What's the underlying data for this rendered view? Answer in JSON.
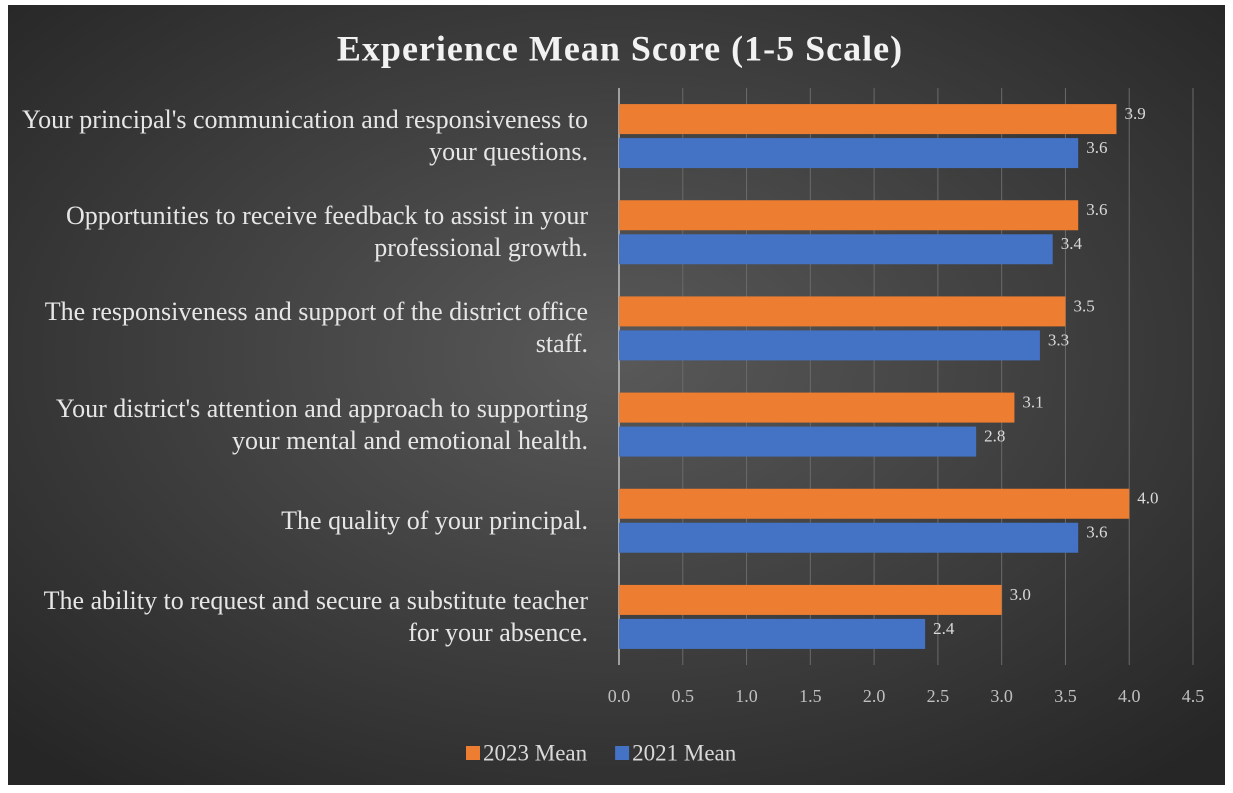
{
  "chart_data": {
    "type": "bar",
    "orientation": "horizontal",
    "title": "Experience Mean Score (1-5 Scale)",
    "categories": [
      "Your principal's communication and responsiveness to your questions.",
      "Opportunities to receive feedback to assist in your professional growth.",
      "The responsiveness and support of the district office staff.",
      "Your district's attention and approach to supporting your mental and emotional health.",
      "The quality of your principal.",
      "The ability to request and secure a substitute teacher for your absence."
    ],
    "series": [
      {
        "name": "2023 Mean",
        "color": "#ed7d31",
        "values": [
          3.9,
          3.6,
          3.5,
          3.1,
          4,
          3
        ],
        "value_labels": [
          "3.9",
          "3.6",
          "3.5",
          "3.1",
          "4.0",
          "3.0"
        ]
      },
      {
        "name": "2021 Mean",
        "color": "#4472c4",
        "values": [
          3.6,
          3.4,
          3.3,
          2.8,
          3.6,
          2.4
        ],
        "value_labels": [
          "3.6",
          "3.4",
          "3.3",
          "2.8",
          "3.6",
          "2.4"
        ]
      }
    ],
    "xlim": [
      0,
      4.5
    ],
    "xticks": [
      {
        "value": 0,
        "label": "0.0"
      },
      {
        "value": 0.5,
        "label": "0.5"
      },
      {
        "value": 1,
        "label": "1.0"
      },
      {
        "value": 1.5,
        "label": "1.5"
      },
      {
        "value": 2,
        "label": "2.0"
      },
      {
        "value": 2.5,
        "label": "2.5"
      },
      {
        "value": 3,
        "label": "3.0"
      },
      {
        "value": 3.5,
        "label": "3.5"
      },
      {
        "value": 4,
        "label": "4.0"
      },
      {
        "value": 4.5,
        "label": "4.5"
      }
    ],
    "grid": true,
    "legend": "bottom"
  }
}
